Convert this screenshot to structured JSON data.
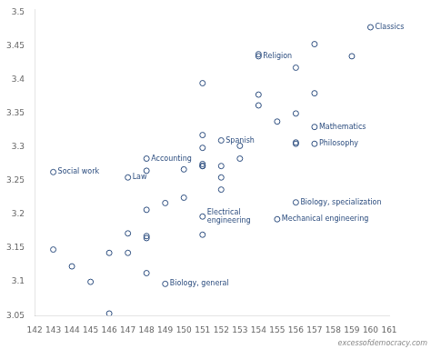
{
  "chart_data": {
    "type": "scatter",
    "color": "#2b4c7e",
    "marker": "circle",
    "grid": false,
    "x": [
      143,
      143,
      144,
      145,
      146,
      146,
      147,
      147,
      147,
      148,
      148,
      148,
      148,
      148,
      148,
      149,
      149,
      150,
      150,
      151,
      151,
      151,
      151,
      151,
      151,
      151,
      151,
      152,
      152,
      152,
      152,
      153,
      153,
      154,
      154,
      154,
      154,
      155,
      155,
      156,
      156,
      156,
      156,
      156,
      157,
      157,
      157,
      157,
      159,
      160
    ],
    "values": [
      3.148,
      3.263,
      3.123,
      3.1,
      3.053,
      3.143,
      3.172,
      3.255,
      3.143,
      3.113,
      3.165,
      3.168,
      3.207,
      3.283,
      3.265,
      3.217,
      3.097,
      3.225,
      3.267,
      3.17,
      3.197,
      3.272,
      3.272,
      3.275,
      3.299,
      3.318,
      3.395,
      3.237,
      3.255,
      3.272,
      3.31,
      3.283,
      3.302,
      3.362,
      3.378,
      3.435,
      3.438,
      3.193,
      3.338,
      3.218,
      3.305,
      3.307,
      3.35,
      3.418,
      3.305,
      3.33,
      3.38,
      3.453,
      3.435,
      3.478
    ],
    "annotations": [
      {
        "text": "Social work",
        "x": 143,
        "y": 3.263
      },
      {
        "text": "Accounting",
        "x": 148,
        "y": 3.283
      },
      {
        "text": "Law",
        "x": 147,
        "y": 3.255
      },
      {
        "text": "Biology, general",
        "x": 149,
        "y": 3.097
      },
      {
        "text": "Electrical\nengineering",
        "x": 151,
        "y": 3.197
      },
      {
        "text": "Spanish",
        "x": 152,
        "y": 3.31
      },
      {
        "text": "Religion",
        "x": 154,
        "y": 3.435
      },
      {
        "text": "Mechanical engineering",
        "x": 155,
        "y": 3.193
      },
      {
        "text": "Philosophy",
        "x": 157,
        "y": 3.305
      },
      {
        "text": "Mathematics",
        "x": 157,
        "y": 3.33
      },
      {
        "text": "Biology, specialization",
        "x": 156,
        "y": 3.218
      },
      {
        "text": "Classics",
        "x": 160,
        "y": 3.478
      },
      {
        "text": "excessofdemocracy.com"
      }
    ],
    "xlim": [
      142,
      161
    ],
    "ylim": [
      3.05,
      3.505
    ],
    "xticks": [
      142,
      143,
      144,
      145,
      146,
      147,
      148,
      149,
      150,
      151,
      152,
      153,
      154,
      155,
      156,
      157,
      158,
      159,
      160,
      161
    ],
    "yticks": [
      3.05,
      3.1,
      3.15,
      3.2,
      3.25,
      3.3,
      3.35,
      3.4,
      3.45,
      3.5
    ]
  }
}
